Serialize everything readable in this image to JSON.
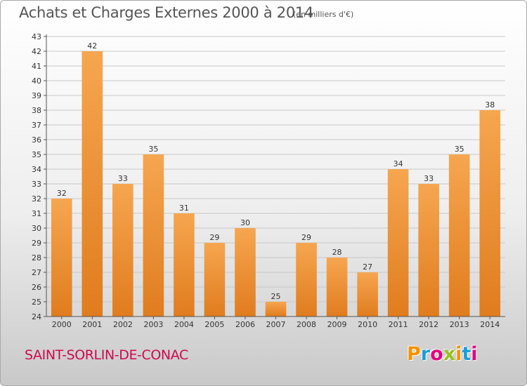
{
  "title": "Achats et Charges Externes 2000 à 2014",
  "unit": "(en milliers d'€)",
  "commune": "SAINT-SORLIN-DE-CONAC",
  "brand": {
    "letters": [
      "P",
      "r",
      "o",
      "x",
      "i",
      "t",
      "i"
    ],
    "colors": [
      "#f39200",
      "#1a9ed9",
      "#e6007e",
      "#95c11f",
      "#f39200",
      "#1a9ed9",
      "#e6007e"
    ]
  },
  "colors": {
    "bar_light": "#f6a650",
    "bar_dark": "#e07c1e",
    "grid": "#c8c8c8",
    "axis": "#555555",
    "commune": "#cc0a4e"
  },
  "chart_data": {
    "type": "bar",
    "categories": [
      "2000",
      "2001",
      "2002",
      "2003",
      "2004",
      "2005",
      "2006",
      "2007",
      "2008",
      "2009",
      "2010",
      "2011",
      "2012",
      "2013",
      "2014"
    ],
    "values": [
      32,
      42,
      33,
      35,
      31,
      29,
      30,
      25,
      29,
      28,
      27,
      34,
      33,
      35,
      38
    ],
    "data_labels": [
      "32",
      "42",
      "33",
      "35",
      "31",
      "29",
      "30",
      "25",
      "29",
      "28",
      "27",
      "34",
      "33",
      "35",
      "38"
    ],
    "ylim": [
      24,
      43
    ],
    "yticks": [
      24,
      25,
      26,
      27,
      28,
      29,
      30,
      31,
      32,
      33,
      34,
      35,
      36,
      37,
      38,
      39,
      40,
      41,
      42,
      43
    ],
    "title": "Achats et Charges Externes 2000 à 2014",
    "xlabel": "",
    "ylabel": "",
    "grid": true,
    "legend": "none"
  }
}
